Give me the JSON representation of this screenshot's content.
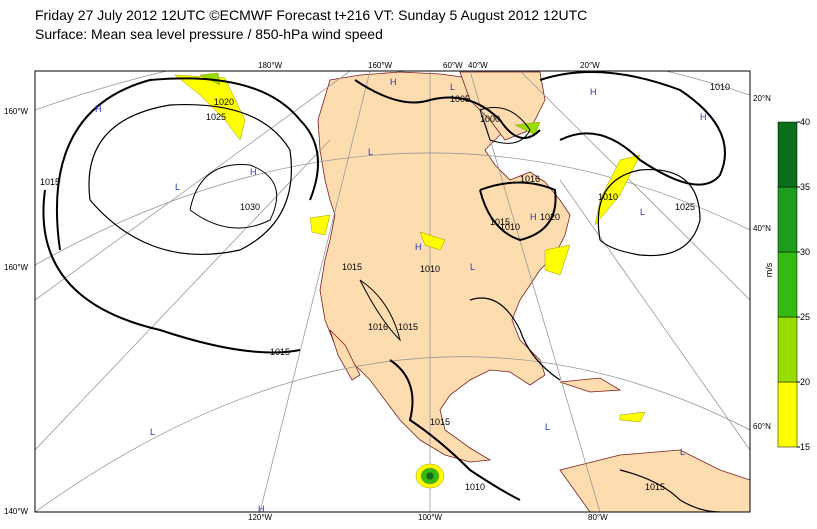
{
  "header": {
    "line1": "Friday 27 July 2012 12UTC ©ECMWF Forecast t+216 VT: Sunday 5 August 2012 12UTC",
    "line2": "Surface: Mean sea level pressure / 850-hPa wind speed"
  },
  "graticule_labels": {
    "top": [
      "180°W",
      "160°W",
      "60°W",
      "40°W",
      "20°W"
    ],
    "bottom": [
      "120°W",
      "100°W",
      "80°W"
    ],
    "left": [
      "160°W",
      "160°W",
      "140°W"
    ],
    "right": [
      "20°N",
      "40°N",
      "60°N"
    ]
  },
  "isobar_labels": [
    "1020",
    "1025",
    "1015",
    "1030",
    "1015",
    "1005",
    "1000",
    "1010",
    "1020",
    "1015",
    "1025",
    "1010",
    "1015",
    "1010",
    "1016",
    "1015",
    "1015",
    "1010",
    "1015",
    "1016",
    "1010"
  ],
  "pressure_centers": [
    "H",
    "H",
    "L",
    "H",
    "L",
    "H",
    "L",
    "H",
    "L",
    "H",
    "L",
    "H",
    "L",
    "H",
    "L",
    "L"
  ],
  "colorbar": {
    "unit": "m/s",
    "ticks": [
      15,
      20,
      25,
      30,
      35,
      40
    ],
    "colors": [
      "#ffff00",
      "#99dd00",
      "#33bb11",
      "#1e9c1e",
      "#0b6e1a"
    ]
  }
}
